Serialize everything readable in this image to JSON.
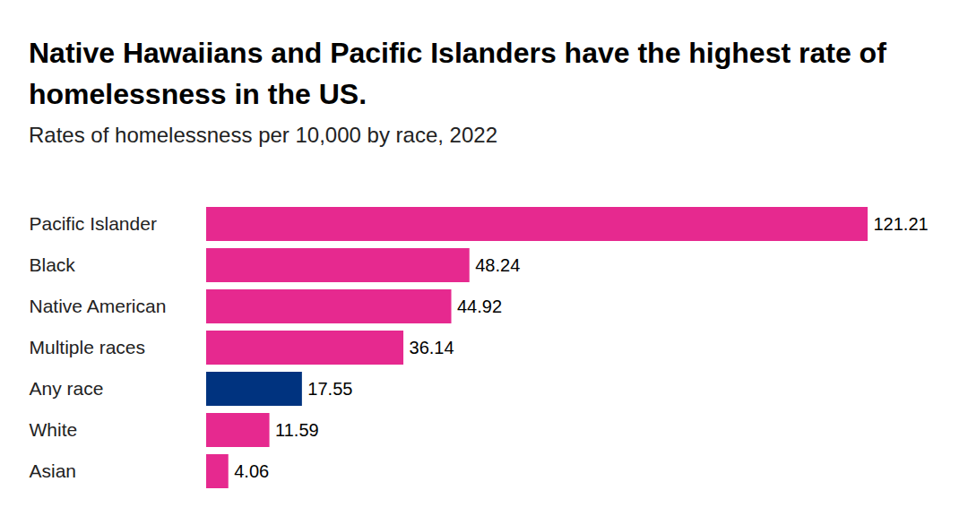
{
  "chart_data": {
    "type": "bar",
    "title": "Native Hawaiians and Pacific Islanders have the highest rate of homelessness in the US.",
    "subtitle": "Rates of homelessness per 10,000 by race, 2022",
    "orientation": "horizontal",
    "categories": [
      "Pacific Islander",
      "Black",
      "Native American",
      "Multiple races",
      "Any race",
      "White",
      "Asian"
    ],
    "values": [
      121.21,
      48.24,
      44.92,
      36.14,
      17.55,
      11.59,
      4.06
    ],
    "colors": [
      "#e6298f",
      "#e6298f",
      "#e6298f",
      "#e6298f",
      "#00337f",
      "#e6298f",
      "#e6298f"
    ],
    "data_labels": true,
    "tick_labels": "y",
    "grid": false
  }
}
